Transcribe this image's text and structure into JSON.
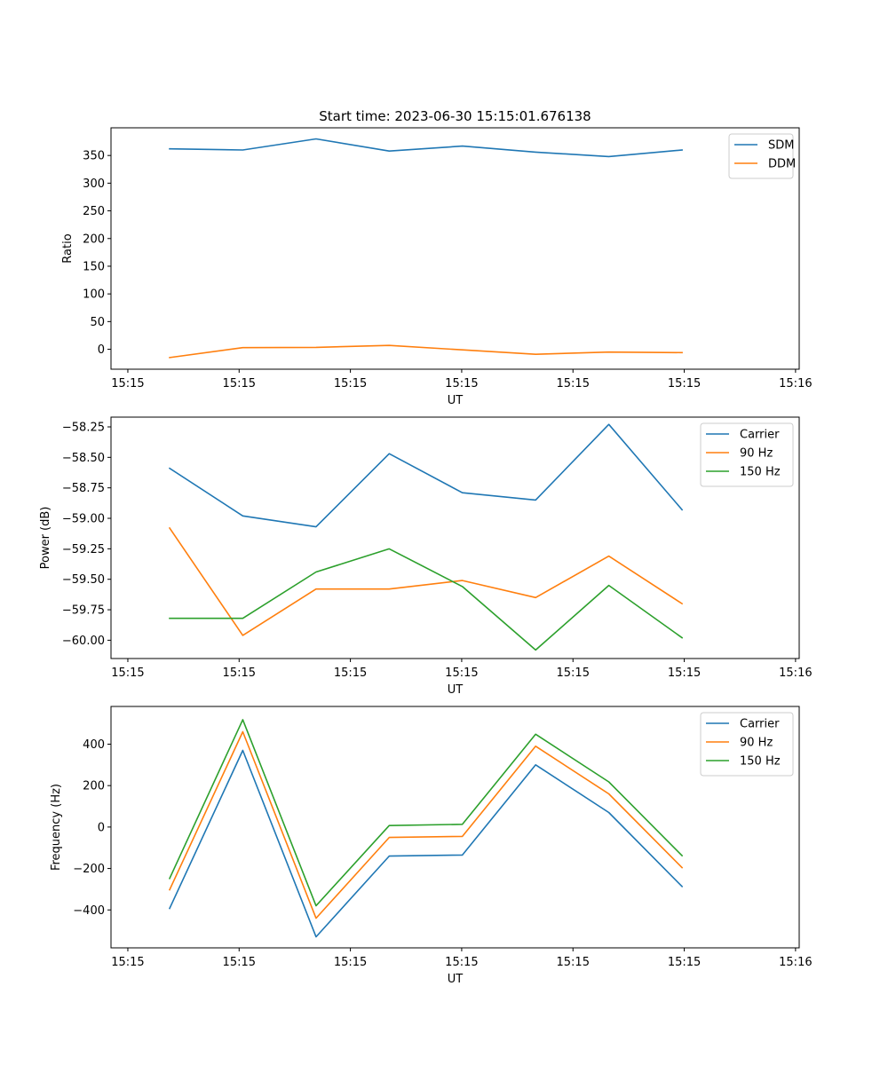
{
  "figure": {
    "title": "Start time: 2023-06-30 15:15:01.676138"
  },
  "colors": {
    "blue": "#1f77b4",
    "orange": "#ff7f0e",
    "green": "#2ca02c"
  },
  "chart_data": [
    {
      "type": "line",
      "title": "Start time: 2023-06-30 15:15:01.676138",
      "xlabel": "UT",
      "ylabel": "Ratio",
      "x": [
        1,
        2,
        3,
        4,
        5,
        6,
        7,
        8
      ],
      "xlim": [
        0.2,
        9.6
      ],
      "xticks": [
        0.43,
        1.95,
        3.47,
        4.99,
        6.51,
        8.03,
        9.55
      ],
      "xticklabels": [
        "15:15",
        "15:15",
        "15:15",
        "15:15",
        "15:15",
        "15:15",
        "15:16"
      ],
      "ylim": [
        -36,
        400
      ],
      "yticks": [
        0,
        50,
        100,
        150,
        200,
        250,
        300,
        350
      ],
      "yticklabels": [
        "0",
        "50",
        "100",
        "150",
        "200",
        "250",
        "300",
        "350"
      ],
      "legend_position": "top-right",
      "grid": false,
      "series": [
        {
          "name": "SDM",
          "color": "#1f77b4",
          "values": [
            362,
            360,
            380,
            358,
            367,
            356,
            348,
            360
          ]
        },
        {
          "name": "DDM",
          "color": "#ff7f0e",
          "values": [
            -15,
            3,
            3.5,
            7,
            -1,
            -9,
            -5,
            -6
          ]
        }
      ]
    },
    {
      "type": "line",
      "title": "",
      "xlabel": "UT",
      "ylabel": "Power (dB)",
      "x": [
        1,
        2,
        3,
        4,
        5,
        6,
        7,
        8
      ],
      "xlim": [
        0.2,
        9.6
      ],
      "xticks": [
        0.43,
        1.95,
        3.47,
        4.99,
        6.51,
        8.03,
        9.55
      ],
      "xticklabels": [
        "15:15",
        "15:15",
        "15:15",
        "15:15",
        "15:15",
        "15:15",
        "15:16"
      ],
      "ylim": [
        -60.15,
        -58.17
      ],
      "yticks": [
        -60.0,
        -59.75,
        -59.5,
        -59.25,
        -59.0,
        -58.75,
        -58.5,
        -58.25
      ],
      "yticklabels": [
        "−60.00",
        "−59.75",
        "−59.50",
        "−59.25",
        "−59.00",
        "−58.75",
        "−58.50",
        "−58.25"
      ],
      "legend_position": "top-right",
      "grid": false,
      "series": [
        {
          "name": "Carrier",
          "color": "#1f77b4",
          "values": [
            -58.59,
            -58.98,
            -59.07,
            -58.47,
            -58.79,
            -58.85,
            -58.23,
            -58.93
          ]
        },
        {
          "name": "90 Hz",
          "color": "#ff7f0e",
          "values": [
            -59.08,
            -59.96,
            -59.58,
            -59.58,
            -59.51,
            -59.65,
            -59.31,
            -59.7
          ]
        },
        {
          "name": "150 Hz",
          "color": "#2ca02c",
          "values": [
            -59.82,
            -59.82,
            -59.44,
            -59.25,
            -59.56,
            -60.08,
            -59.55,
            -59.98
          ]
        }
      ]
    },
    {
      "type": "line",
      "title": "",
      "xlabel": "UT",
      "ylabel": "Frequency (Hz)",
      "x": [
        1,
        2,
        3,
        4,
        5,
        6,
        7,
        8
      ],
      "xlim": [
        0.2,
        9.6
      ],
      "xticks": [
        0.43,
        1.95,
        3.47,
        4.99,
        6.51,
        8.03,
        9.55
      ],
      "xticklabels": [
        "15:15",
        "15:15",
        "15:15",
        "15:15",
        "15:15",
        "15:15",
        "15:16"
      ],
      "ylim": [
        -583,
        582
      ],
      "yticks": [
        -400,
        -200,
        0,
        200,
        400
      ],
      "yticklabels": [
        "−400",
        "−200",
        "0",
        "200",
        "400"
      ],
      "legend_position": "top-right",
      "grid": false,
      "series": [
        {
          "name": "Carrier",
          "color": "#1f77b4",
          "values": [
            -393,
            370,
            -530,
            -140,
            -135,
            300,
            70,
            -287
          ]
        },
        {
          "name": "90 Hz",
          "color": "#ff7f0e",
          "values": [
            -303,
            460,
            -440,
            -50,
            -45,
            390,
            160,
            -196
          ]
        },
        {
          "name": "150 Hz",
          "color": "#2ca02c",
          "values": [
            -248,
            518,
            -380,
            7,
            13,
            448,
            218,
            -138
          ]
        }
      ]
    }
  ]
}
